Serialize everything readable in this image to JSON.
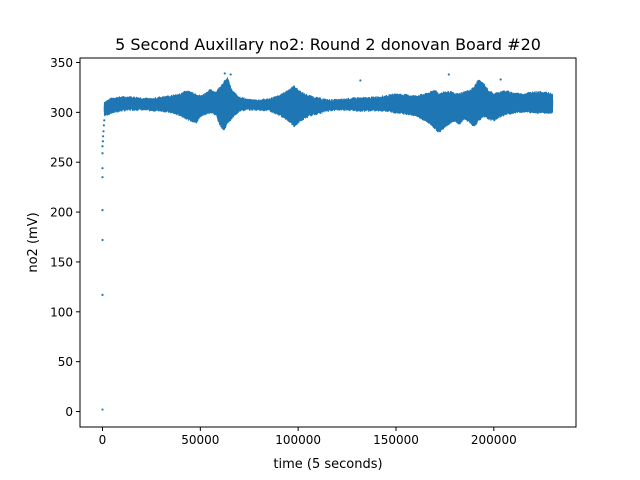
{
  "chart_data": {
    "type": "scatter",
    "title": "5 Second Auxillary no2: Round 2 donovan Board #20",
    "xlabel": "time (5 seconds)",
    "ylabel": "no2 (mV)",
    "xlim": [
      -11500,
      242000
    ],
    "ylim": [
      -15.5,
      354.5
    ],
    "xticks": [
      0,
      50000,
      100000,
      150000,
      200000
    ],
    "xtick_labels": [
      "0",
      "50000",
      "100000",
      "150000",
      "200000"
    ],
    "yticks": [
      0,
      50,
      100,
      150,
      200,
      250,
      300,
      350
    ],
    "ytick_labels": [
      "0",
      "50",
      "100",
      "150",
      "200",
      "250",
      "300",
      "350"
    ],
    "grid": false,
    "legend": "none",
    "series": [
      {
        "color": "#1f77b4",
        "startup_points": [
          {
            "x": 0,
            "y": 2
          },
          {
            "x": 0,
            "y": 117
          },
          {
            "x": 0,
            "y": 172
          },
          {
            "x": 0,
            "y": 202
          },
          {
            "x": 0,
            "y": 235
          },
          {
            "x": 0,
            "y": 244
          },
          {
            "x": 0,
            "y": 259
          },
          {
            "x": 0,
            "y": 266
          },
          {
            "x": 200,
            "y": 271
          },
          {
            "x": 300,
            "y": 276
          },
          {
            "x": 500,
            "y": 281
          },
          {
            "x": 700,
            "y": 287
          },
          {
            "x": 900,
            "y": 292
          }
        ],
        "envelope": {
          "x": [
            1000,
            5000,
            10000,
            15000,
            20000,
            25000,
            30000,
            35000,
            40000,
            42000,
            45000,
            48000,
            50000,
            52000,
            55000,
            58000,
            60000,
            62000,
            64000,
            66000,
            68000,
            70000,
            75000,
            80000,
            85000,
            90000,
            92000,
            95000,
            98000,
            100000,
            103000,
            106000,
            110000,
            115000,
            120000,
            125000,
            130000,
            135000,
            140000,
            145000,
            150000,
            155000,
            160000,
            165000,
            168000,
            170000,
            172000,
            175000,
            178000,
            180000,
            182000,
            185000,
            188000,
            190000,
            192000,
            195000,
            197000,
            200000,
            203000,
            206000,
            210000,
            215000,
            220000,
            225000,
            230000
          ],
          "low": [
            297,
            300,
            302,
            303,
            303,
            302,
            302,
            300,
            297,
            295,
            292,
            290,
            296,
            298,
            300,
            298,
            288,
            282,
            290,
            294,
            298,
            302,
            303,
            303,
            302,
            298,
            296,
            292,
            286,
            290,
            294,
            297,
            299,
            302,
            303,
            303,
            302,
            302,
            302,
            302,
            300,
            299,
            297,
            292,
            288,
            284,
            280,
            286,
            290,
            292,
            288,
            294,
            290,
            286,
            292,
            296,
            294,
            292,
            296,
            298,
            300,
            301,
            300,
            300,
            300
          ],
          "high": [
            310,
            314,
            315,
            315,
            314,
            313,
            315,
            316,
            318,
            321,
            320,
            318,
            316,
            318,
            322,
            320,
            325,
            330,
            334,
            322,
            318,
            315,
            312,
            312,
            313,
            316,
            318,
            322,
            326,
            322,
            318,
            316,
            314,
            312,
            312,
            313,
            314,
            314,
            315,
            316,
            318,
            317,
            316,
            318,
            320,
            322,
            318,
            320,
            320,
            318,
            318,
            320,
            322,
            325,
            332,
            328,
            322,
            318,
            320,
            321,
            319,
            318,
            320,
            320,
            318
          ]
        },
        "outliers": [
          {
            "x": 62500,
            "y": 339
          },
          {
            "x": 65500,
            "y": 338
          },
          {
            "x": 131800,
            "y": 332
          },
          {
            "x": 177000,
            "y": 338
          },
          {
            "x": 203500,
            "y": 333
          }
        ]
      }
    ]
  }
}
